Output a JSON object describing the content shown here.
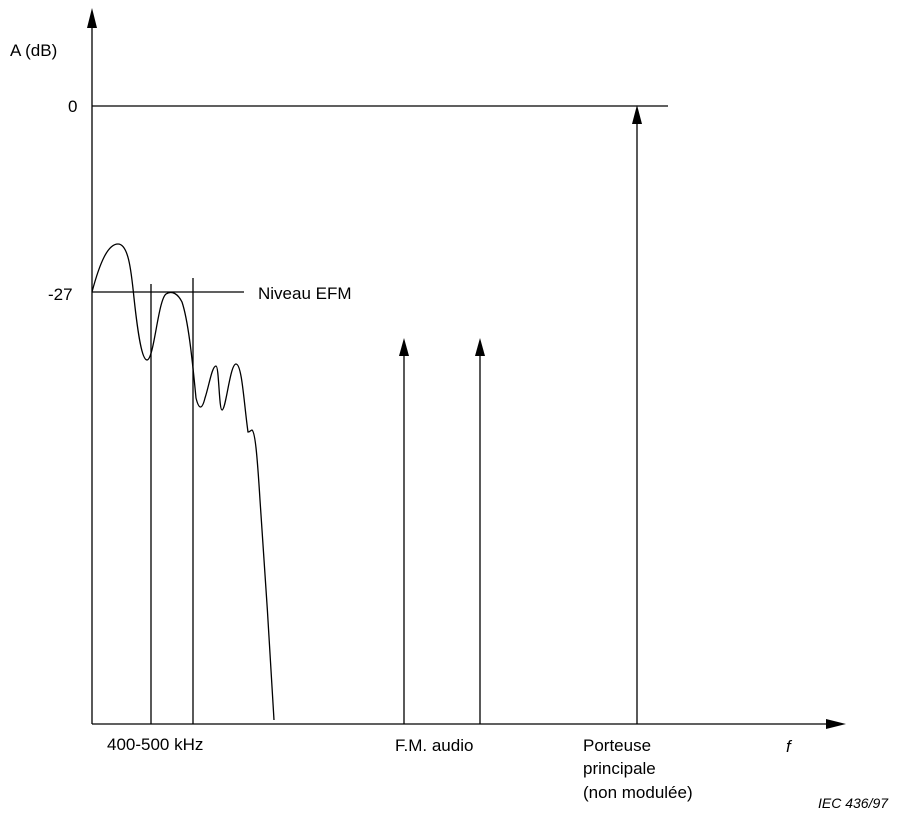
{
  "diagram": {
    "y_axis_label": "A  (dB)",
    "x_axis_label": "f",
    "y_ticks": [
      {
        "label": "0",
        "value": 0
      },
      {
        "label": "-27",
        "value": -27
      }
    ],
    "annotations": {
      "efm_level": "Niveau EFM",
      "band": "400-500 kHz",
      "fm_audio": "F.M. audio",
      "carrier_line1": "Porteuse",
      "carrier_line2": "principale",
      "carrier_line3": "(non modulée)"
    },
    "credit": "IEC  436/97",
    "colors": {
      "ink": "#000000",
      "background": "#ffffff"
    }
  }
}
